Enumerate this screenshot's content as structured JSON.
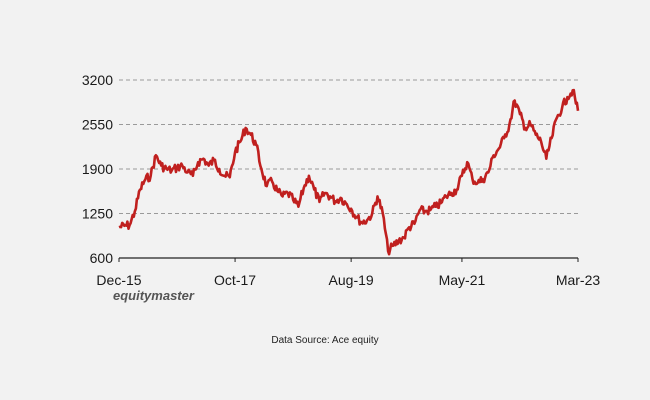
{
  "brand_logo": "equitymaster",
  "source_note": "Data Source: Ace equity",
  "colors": {
    "line": "#c0201f",
    "grid": "#9a9a9a",
    "axis": "#222222",
    "background": "#f2f2f2"
  },
  "chart_data": {
    "type": "line",
    "title": "",
    "xlabel": "",
    "ylabel": "",
    "grid": "horizontal dashed",
    "ylim": [
      600,
      3200
    ],
    "yticks": [
      600,
      1250,
      1900,
      2550,
      3200
    ],
    "xlim": [
      "2015-12",
      "2023-03"
    ],
    "xticks": [
      {
        "date": "2015-12",
        "label": "Dec-15"
      },
      {
        "date": "2017-10",
        "label": "Oct-17"
      },
      {
        "date": "2019-08",
        "label": "Aug-19"
      },
      {
        "date": "2021-05",
        "label": "May-21"
      },
      {
        "date": "2023-03",
        "label": "Mar-23"
      }
    ],
    "series": [
      {
        "color": "#c0201f",
        "points": [
          [
            "2015-12",
            1050
          ],
          [
            "2016-01",
            1070
          ],
          [
            "2016-02",
            1080
          ],
          [
            "2016-03",
            1280
          ],
          [
            "2016-04",
            1600
          ],
          [
            "2016-05",
            1750
          ],
          [
            "2016-06",
            1800
          ],
          [
            "2016-07",
            2100
          ],
          [
            "2016-08",
            1950
          ],
          [
            "2016-09",
            1900
          ],
          [
            "2016-10",
            1880
          ],
          [
            "2016-11",
            1920
          ],
          [
            "2016-12",
            1950
          ],
          [
            "2017-01",
            1850
          ],
          [
            "2017-02",
            1800
          ],
          [
            "2017-03",
            2000
          ],
          [
            "2017-04",
            2050
          ],
          [
            "2017-05",
            1950
          ],
          [
            "2017-06",
            2030
          ],
          [
            "2017-07",
            1900
          ],
          [
            "2017-08",
            1800
          ],
          [
            "2017-09",
            1780
          ],
          [
            "2017-10",
            2150
          ],
          [
            "2017-11",
            2300
          ],
          [
            "2017-12",
            2500
          ],
          [
            "2018-01",
            2400
          ],
          [
            "2018-02",
            2250
          ],
          [
            "2018-03",
            1900
          ],
          [
            "2018-04",
            1650
          ],
          [
            "2018-05",
            1720
          ],
          [
            "2018-06",
            1580
          ],
          [
            "2018-07",
            1500
          ],
          [
            "2018-08",
            1550
          ],
          [
            "2018-09",
            1450
          ],
          [
            "2018-10",
            1350
          ],
          [
            "2018-11",
            1620
          ],
          [
            "2018-12",
            1800
          ],
          [
            "2019-01",
            1600
          ],
          [
            "2019-02",
            1420
          ],
          [
            "2019-03",
            1550
          ],
          [
            "2019-04",
            1500
          ],
          [
            "2019-05",
            1430
          ],
          [
            "2019-06",
            1480
          ],
          [
            "2019-07",
            1400
          ],
          [
            "2019-08",
            1320
          ],
          [
            "2019-09",
            1200
          ],
          [
            "2019-10",
            1120
          ],
          [
            "2019-11",
            1150
          ],
          [
            "2019-12",
            1250
          ],
          [
            "2020-01",
            1500
          ],
          [
            "2020-02",
            1250
          ],
          [
            "2020-03",
            700
          ],
          [
            "2020-04",
            780
          ],
          [
            "2020-05",
            850
          ],
          [
            "2020-06",
            900
          ],
          [
            "2020-07",
            1050
          ],
          [
            "2020-08",
            1100
          ],
          [
            "2020-09",
            1300
          ],
          [
            "2020-10",
            1280
          ],
          [
            "2020-11",
            1300
          ],
          [
            "2020-12",
            1350
          ],
          [
            "2021-01",
            1400
          ],
          [
            "2021-02",
            1500
          ],
          [
            "2021-03",
            1550
          ],
          [
            "2021-04",
            1600
          ],
          [
            "2021-05",
            1800
          ],
          [
            "2021-06",
            2000
          ],
          [
            "2021-07",
            1750
          ],
          [
            "2021-08",
            1700
          ],
          [
            "2021-09",
            1750
          ],
          [
            "2021-10",
            1850
          ],
          [
            "2021-11",
            2100
          ],
          [
            "2021-12",
            2200
          ],
          [
            "2022-01",
            2350
          ],
          [
            "2022-02",
            2550
          ],
          [
            "2022-03",
            2900
          ],
          [
            "2022-04",
            2700
          ],
          [
            "2022-05",
            2500
          ],
          [
            "2022-06",
            2550
          ],
          [
            "2022-07",
            2400
          ],
          [
            "2022-08",
            2300
          ],
          [
            "2022-09",
            2050
          ],
          [
            "2022-10",
            2350
          ],
          [
            "2022-11",
            2650
          ],
          [
            "2022-12",
            2800
          ],
          [
            "2023-01",
            2950
          ],
          [
            "2023-02",
            3050
          ],
          [
            "2023-03",
            2750
          ]
        ]
      }
    ]
  }
}
